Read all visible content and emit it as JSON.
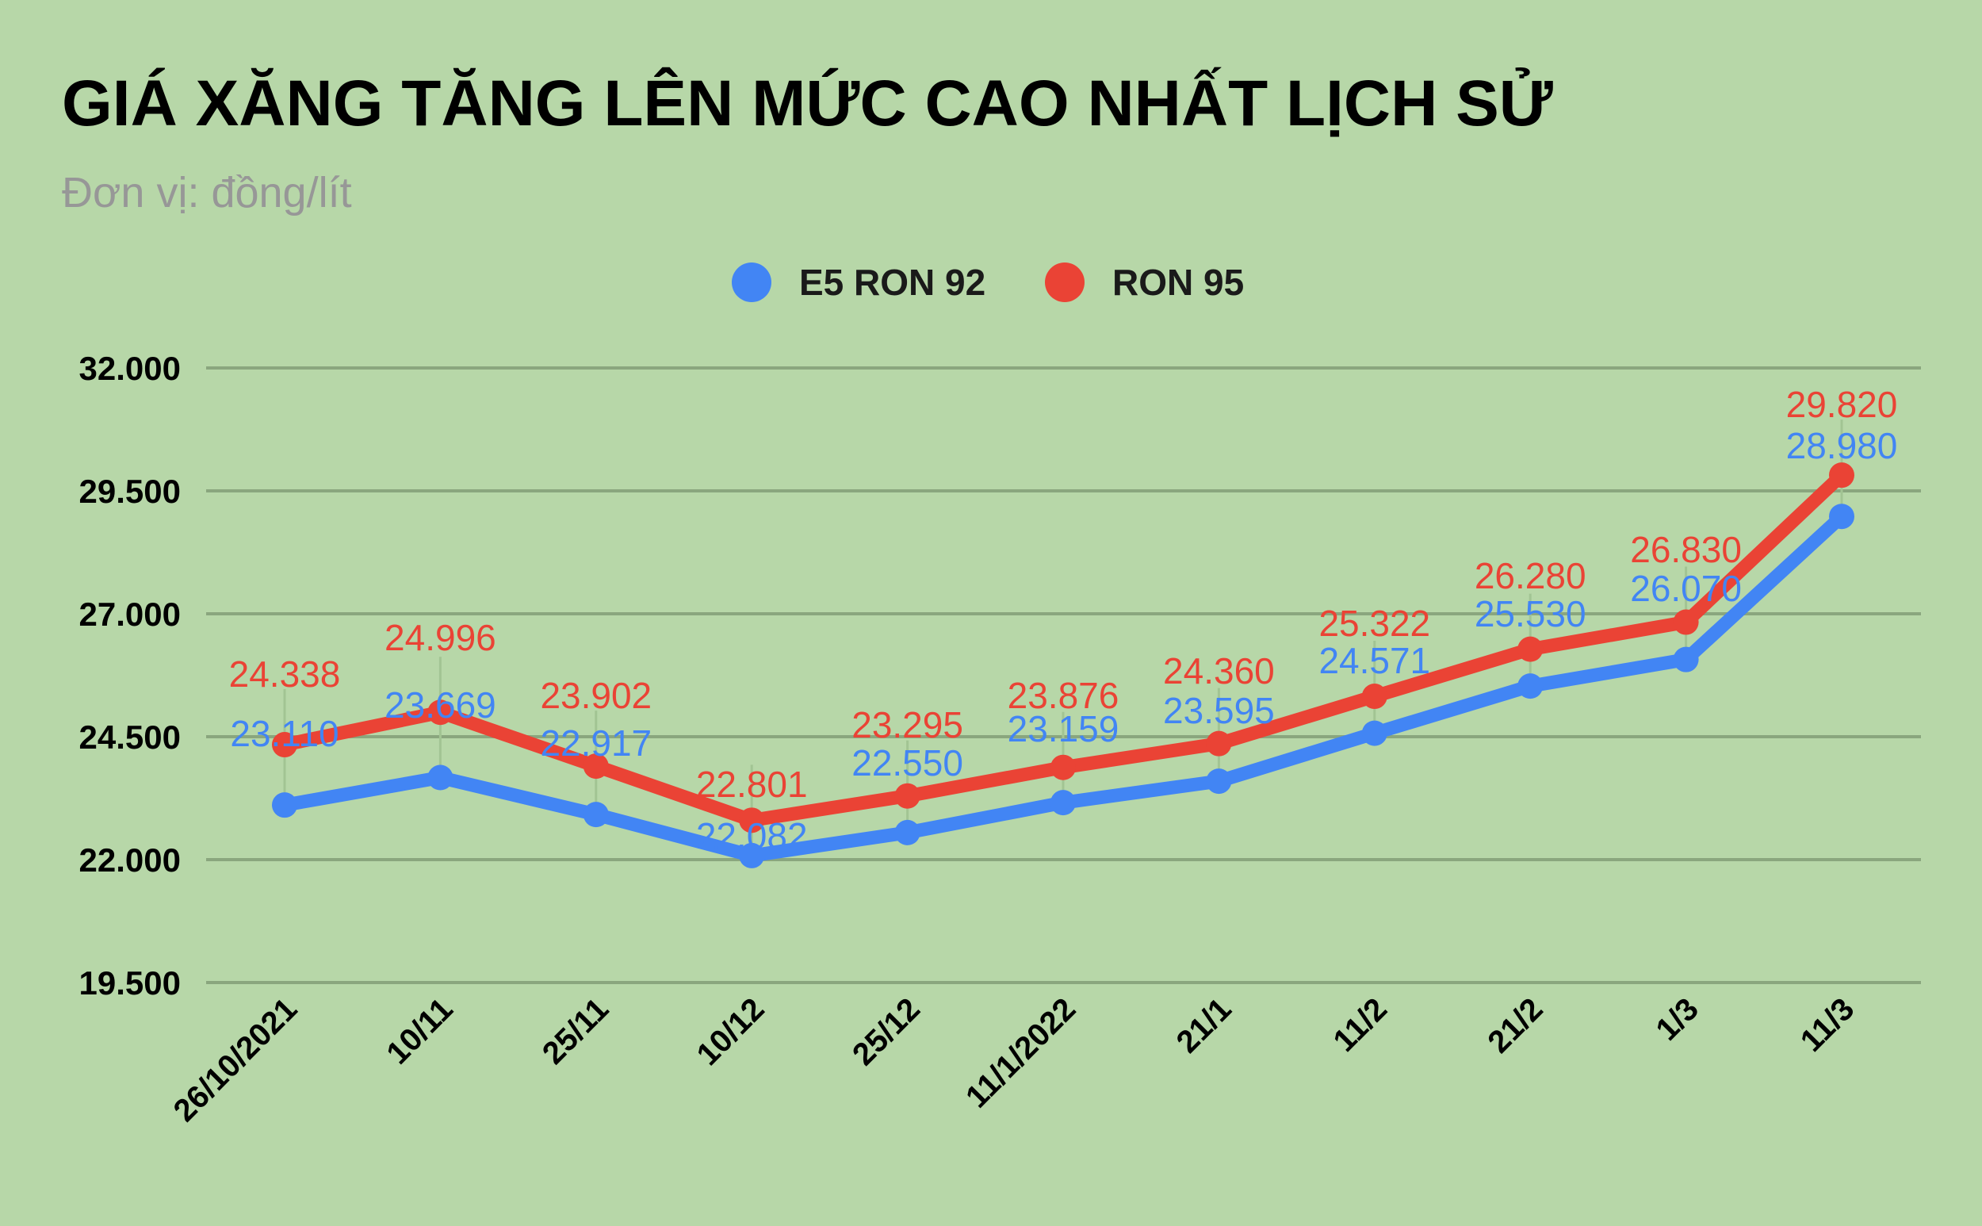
{
  "header": {
    "title": "GIÁ XĂNG TĂNG LÊN MỨC CAO NHẤT LỊCH SỬ",
    "subtitle": "Đơn vị: đồng/lít"
  },
  "colors": {
    "background": "#b7d7a8",
    "gridline": "#8aa67e",
    "e5_ron92": "#4285f4",
    "ron95": "#ea4335"
  },
  "legend": [
    {
      "label": "E5 RON 92",
      "color": "#4285f4"
    },
    {
      "label": "RON 95",
      "color": "#ea4335"
    }
  ],
  "chart_data": {
    "type": "line",
    "title": "GIÁ XĂNG TĂNG LÊN MỨC CAO NHẤT LỊCH SỬ",
    "subtitle": "Đơn vị: đồng/lít",
    "xlabel": "",
    "ylabel": "",
    "categories": [
      "26/10/2021",
      "10/11",
      "25/11",
      "10/12",
      "25/12",
      "11/1/2022",
      "21/1",
      "11/2",
      "21/2",
      "1/3",
      "11/3"
    ],
    "series": [
      {
        "name": "E5 RON 92",
        "color": "#4285f4",
        "values": [
          23110,
          23669,
          22917,
          22082,
          22550,
          23159,
          23595,
          24571,
          25530,
          26070,
          28980
        ],
        "labels": [
          "23.110",
          "23.669",
          "22.917",
          "22.082",
          "22.550",
          "23.159",
          "23.595",
          "24.571",
          "25.530",
          "26.070",
          "28.980"
        ]
      },
      {
        "name": "RON 95",
        "color": "#ea4335",
        "values": [
          24338,
          24996,
          23902,
          22801,
          23295,
          23876,
          24360,
          25322,
          26280,
          26830,
          29820
        ],
        "labels": [
          "24.338",
          "24.996",
          "23.902",
          "22.801",
          "23.295",
          "23.876",
          "24.360",
          "25.322",
          "26.280",
          "26.830",
          "29.820"
        ]
      }
    ],
    "yticks": [
      32000,
      29500,
      27000,
      24500,
      22000,
      19500
    ],
    "ytick_labels": [
      "32.000",
      "29.500",
      "27.000",
      "24.500",
      "22.000",
      "19.500"
    ],
    "ylim": [
      19500,
      32000
    ],
    "grid": true,
    "legend_position": "top"
  }
}
